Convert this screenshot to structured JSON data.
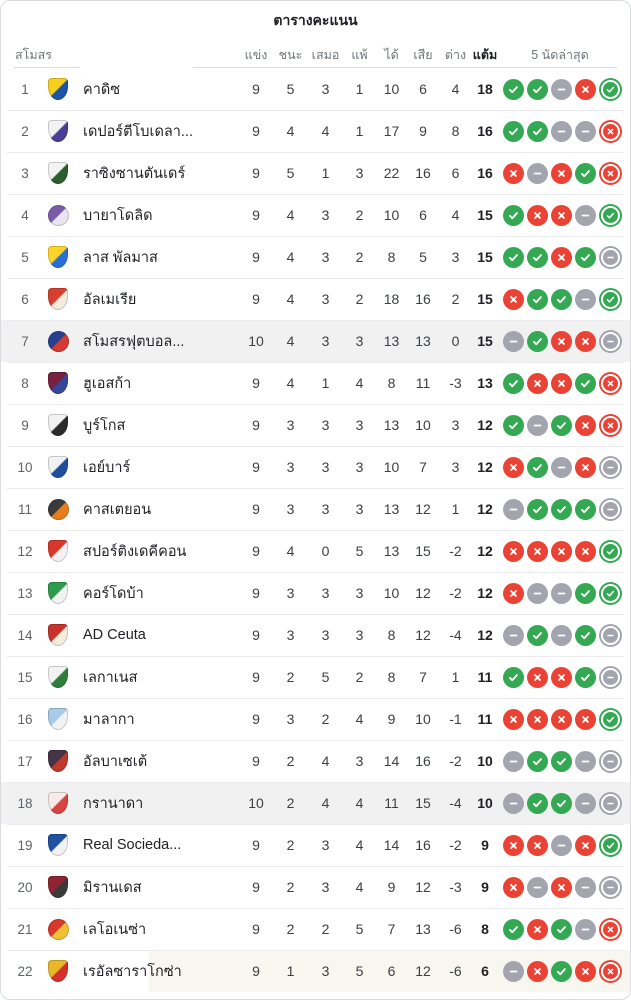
{
  "title": "ตารางคะแนน",
  "columns": {
    "club": "สโมสร",
    "played": "แข่ง",
    "won": "ชนะ",
    "drawn": "เสมอ",
    "lost": "แพ้",
    "gf": "ได้",
    "ga": "เสีย",
    "gd": "ต่าง",
    "pts": "แต้ม",
    "form": "5 นัดล่าสุด"
  },
  "colors": {
    "win": "#34a853",
    "loss": "#ea4335",
    "draw": "#a4a4af",
    "row_highlight": "#f1f1f2",
    "row_tint": "#f7f6ef",
    "card_border": "#dadce0",
    "header_text": "#70757a"
  },
  "form_icon_names": {
    "w": "win-check-icon",
    "l": "loss-x-icon",
    "d": "draw-minus-icon"
  },
  "rows": [
    {
      "rank": "1",
      "name": "คาดิซ",
      "badge": {
        "shape": "shield",
        "primary": "#f7d01e",
        "secondary": "#1c55a6"
      },
      "played": "9",
      "won": "5",
      "drawn": "3",
      "lost": "1",
      "gf": "10",
      "ga": "6",
      "gd": "4",
      "pts": "18",
      "form": [
        "w",
        "w",
        "d",
        "l",
        "w"
      ],
      "highlight": false,
      "tint": false
    },
    {
      "rank": "2",
      "name": "เดปอร์ตีโบเดลา...",
      "badge": {
        "shape": "shield",
        "primary": "#f2f2f2",
        "secondary": "#4a3f97"
      },
      "played": "9",
      "won": "4",
      "drawn": "4",
      "lost": "1",
      "gf": "17",
      "ga": "9",
      "gd": "8",
      "pts": "16",
      "form": [
        "w",
        "w",
        "d",
        "d",
        "l"
      ],
      "highlight": false,
      "tint": false
    },
    {
      "rank": "3",
      "name": "ราซิงซานตันเดร์",
      "badge": {
        "shape": "shield",
        "primary": "#f2f2f2",
        "secondary": "#2b5e2e"
      },
      "played": "9",
      "won": "5",
      "drawn": "1",
      "lost": "3",
      "gf": "22",
      "ga": "16",
      "gd": "6",
      "pts": "16",
      "form": [
        "l",
        "d",
        "l",
        "w",
        "l"
      ],
      "highlight": false,
      "tint": false
    },
    {
      "rank": "4",
      "name": "บายาโดลิด",
      "badge": {
        "shape": "circle",
        "primary": "#7a5ba6",
        "secondary": "#e8e4f0"
      },
      "played": "9",
      "won": "4",
      "drawn": "3",
      "lost": "2",
      "gf": "10",
      "ga": "6",
      "gd": "4",
      "pts": "15",
      "form": [
        "w",
        "l",
        "l",
        "d",
        "w"
      ],
      "highlight": false,
      "tint": false
    },
    {
      "rank": "5",
      "name": "ลาส พัลมาส",
      "badge": {
        "shape": "shield",
        "primary": "#ffd42a",
        "secondary": "#2a6fd6"
      },
      "played": "9",
      "won": "4",
      "drawn": "3",
      "lost": "2",
      "gf": "8",
      "ga": "5",
      "gd": "3",
      "pts": "15",
      "form": [
        "w",
        "w",
        "l",
        "w",
        "d"
      ],
      "highlight": false,
      "tint": false
    },
    {
      "rank": "6",
      "name": "อัลเมเรีย",
      "badge": {
        "shape": "shield",
        "primary": "#d6402f",
        "secondary": "#f4ecdc"
      },
      "played": "9",
      "won": "4",
      "drawn": "3",
      "lost": "2",
      "gf": "18",
      "ga": "16",
      "gd": "2",
      "pts": "15",
      "form": [
        "l",
        "w",
        "w",
        "d",
        "w"
      ],
      "highlight": false,
      "tint": false
    },
    {
      "rank": "7",
      "name": "สโมสรฟุตบอล...",
      "badge": {
        "shape": "circle",
        "primary": "#27408f",
        "secondary": "#d63a33"
      },
      "played": "10",
      "won": "4",
      "drawn": "3",
      "lost": "3",
      "gf": "13",
      "ga": "13",
      "gd": "0",
      "pts": "15",
      "form": [
        "d",
        "w",
        "l",
        "l",
        "d"
      ],
      "highlight": true,
      "tint": false
    },
    {
      "rank": "8",
      "name": "ฮูเอสก้า",
      "badge": {
        "shape": "shield",
        "primary": "#77203f",
        "secondary": "#35479c"
      },
      "played": "9",
      "won": "4",
      "drawn": "1",
      "lost": "4",
      "gf": "8",
      "ga": "11",
      "gd": "-3",
      "pts": "13",
      "form": [
        "w",
        "l",
        "l",
        "w",
        "l"
      ],
      "highlight": false,
      "tint": false
    },
    {
      "rank": "9",
      "name": "บูร์โกส",
      "badge": {
        "shape": "shield",
        "primary": "#f2f2f2",
        "secondary": "#2b2b2b"
      },
      "played": "9",
      "won": "3",
      "drawn": "3",
      "lost": "3",
      "gf": "13",
      "ga": "10",
      "gd": "3",
      "pts": "12",
      "form": [
        "w",
        "d",
        "w",
        "l",
        "l"
      ],
      "highlight": false,
      "tint": false
    },
    {
      "rank": "10",
      "name": "เอย์บาร์",
      "badge": {
        "shape": "shield",
        "primary": "#f2f2f2",
        "secondary": "#1d4f9e"
      },
      "played": "9",
      "won": "3",
      "drawn": "3",
      "lost": "3",
      "gf": "10",
      "ga": "7",
      "gd": "3",
      "pts": "12",
      "form": [
        "l",
        "w",
        "d",
        "l",
        "d"
      ],
      "highlight": false,
      "tint": false
    },
    {
      "rank": "11",
      "name": "คาสเตยอน",
      "badge": {
        "shape": "circle",
        "primary": "#3a3a3a",
        "secondary": "#e87d1e"
      },
      "played": "9",
      "won": "3",
      "drawn": "3",
      "lost": "3",
      "gf": "13",
      "ga": "12",
      "gd": "1",
      "pts": "12",
      "form": [
        "d",
        "w",
        "w",
        "w",
        "d"
      ],
      "highlight": false,
      "tint": false
    },
    {
      "rank": "12",
      "name": "สปอร์ติงเดคีคอน",
      "badge": {
        "shape": "shield",
        "primary": "#d8372c",
        "secondary": "#f2f2f2"
      },
      "played": "9",
      "won": "4",
      "drawn": "0",
      "lost": "5",
      "gf": "13",
      "ga": "15",
      "gd": "-2",
      "pts": "12",
      "form": [
        "l",
        "l",
        "l",
        "l",
        "w"
      ],
      "highlight": false,
      "tint": false
    },
    {
      "rank": "13",
      "name": "คอร์โดบ้า",
      "badge": {
        "shape": "shield",
        "primary": "#2e9a4c",
        "secondary": "#f2f2f2"
      },
      "played": "9",
      "won": "3",
      "drawn": "3",
      "lost": "3",
      "gf": "10",
      "ga": "12",
      "gd": "-2",
      "pts": "12",
      "form": [
        "l",
        "d",
        "d",
        "w",
        "w"
      ],
      "highlight": false,
      "tint": false
    },
    {
      "rank": "14",
      "name": "AD Ceuta",
      "badge": {
        "shape": "shield",
        "primary": "#c5332b",
        "secondary": "#f4ecdc"
      },
      "played": "9",
      "won": "3",
      "drawn": "3",
      "lost": "3",
      "gf": "8",
      "ga": "12",
      "gd": "-4",
      "pts": "12",
      "form": [
        "d",
        "w",
        "d",
        "w",
        "d"
      ],
      "highlight": false,
      "tint": false
    },
    {
      "rank": "15",
      "name": "เลกาเนส",
      "badge": {
        "shape": "shield",
        "primary": "#f2f2f2",
        "secondary": "#2f7d3a"
      },
      "played": "9",
      "won": "2",
      "drawn": "5",
      "lost": "2",
      "gf": "8",
      "ga": "7",
      "gd": "1",
      "pts": "11",
      "form": [
        "w",
        "l",
        "l",
        "w",
        "d"
      ],
      "highlight": false,
      "tint": false
    },
    {
      "rank": "16",
      "name": "มาลากา",
      "badge": {
        "shape": "shield",
        "primary": "#a8cbe8",
        "secondary": "#f2f2f2"
      },
      "played": "9",
      "won": "3",
      "drawn": "2",
      "lost": "4",
      "gf": "9",
      "ga": "10",
      "gd": "-1",
      "pts": "11",
      "form": [
        "l",
        "l",
        "l",
        "l",
        "w"
      ],
      "highlight": false,
      "tint": false
    },
    {
      "rank": "17",
      "name": "อัลบาเซเต้",
      "badge": {
        "shape": "shield",
        "primary": "#453348",
        "secondary": "#c0392b"
      },
      "played": "9",
      "won": "2",
      "drawn": "4",
      "lost": "3",
      "gf": "14",
      "ga": "16",
      "gd": "-2",
      "pts": "10",
      "form": [
        "d",
        "w",
        "w",
        "d",
        "d"
      ],
      "highlight": false,
      "tint": false
    },
    {
      "rank": "18",
      "name": "กรานาดา",
      "badge": {
        "shape": "shield",
        "primary": "#f9eaea",
        "secondary": "#d84343"
      },
      "played": "10",
      "won": "2",
      "drawn": "4",
      "lost": "4",
      "gf": "11",
      "ga": "15",
      "gd": "-4",
      "pts": "10",
      "form": [
        "d",
        "w",
        "w",
        "d",
        "d"
      ],
      "highlight": true,
      "tint": false
    },
    {
      "rank": "19",
      "name": "Real Socieda...",
      "badge": {
        "shape": "shield",
        "primary": "#2050a0",
        "secondary": "#f2f2f2"
      },
      "played": "9",
      "won": "2",
      "drawn": "3",
      "lost": "4",
      "gf": "14",
      "ga": "16",
      "gd": "-2",
      "pts": "9",
      "form": [
        "l",
        "l",
        "d",
        "l",
        "w"
      ],
      "highlight": false,
      "tint": false
    },
    {
      "rank": "20",
      "name": "มิรานเดส",
      "badge": {
        "shape": "shield",
        "primary": "#8f2433",
        "secondary": "#3a3a3a"
      },
      "played": "9",
      "won": "2",
      "drawn": "3",
      "lost": "4",
      "gf": "9",
      "ga": "12",
      "gd": "-3",
      "pts": "9",
      "form": [
        "l",
        "d",
        "l",
        "d",
        "d"
      ],
      "highlight": false,
      "tint": false
    },
    {
      "rank": "21",
      "name": "เลโอเนซ่า",
      "badge": {
        "shape": "circle",
        "primary": "#d8372c",
        "secondary": "#f0c137"
      },
      "played": "9",
      "won": "2",
      "drawn": "2",
      "lost": "5",
      "gf": "7",
      "ga": "13",
      "gd": "-6",
      "pts": "8",
      "form": [
        "w",
        "l",
        "w",
        "d",
        "l"
      ],
      "highlight": false,
      "tint": false
    },
    {
      "rank": "22",
      "name": "เรอัลซาราโกซ่า",
      "badge": {
        "shape": "shield",
        "primary": "#e8b72a",
        "secondary": "#d6302c"
      },
      "played": "9",
      "won": "1",
      "drawn": "3",
      "lost": "5",
      "gf": "6",
      "ga": "12",
      "gd": "-6",
      "pts": "6",
      "form": [
        "d",
        "l",
        "w",
        "l",
        "l"
      ],
      "highlight": false,
      "tint": true
    }
  ]
}
